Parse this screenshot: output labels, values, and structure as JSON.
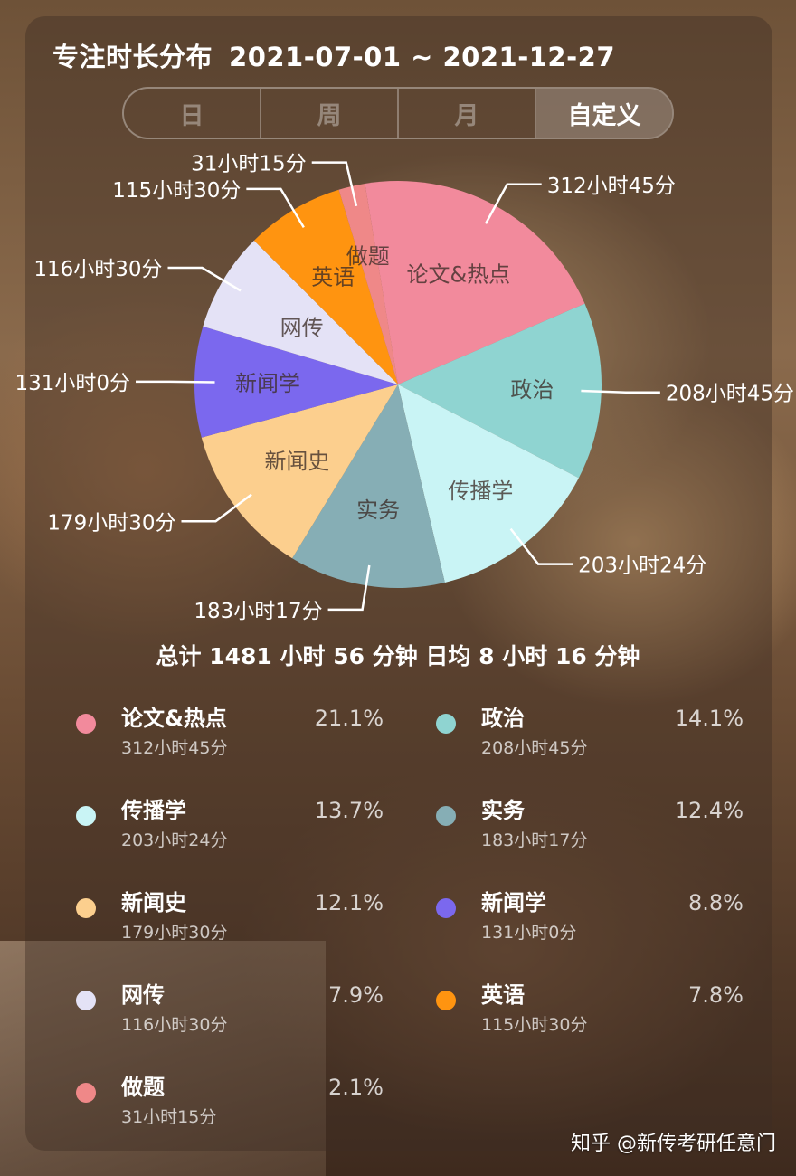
{
  "header": {
    "title": "专注时长分布",
    "date_range": "2021-07-01 ~ 2021-12-27"
  },
  "tabs": [
    {
      "label": "日",
      "active": false
    },
    {
      "label": "周",
      "active": false
    },
    {
      "label": "月",
      "active": false
    },
    {
      "label": "自定义",
      "active": true
    }
  ],
  "summary": "总计 1481 小时 56 分钟 日均 8 小时 16 分钟",
  "watermark": "知乎 @新传考研任意门",
  "chart_data": {
    "type": "pie",
    "title": "",
    "slices": [
      {
        "label": "论文&热点",
        "time": "312小时45分",
        "percent": 21.1,
        "color": "#f28a9c"
      },
      {
        "label": "政治",
        "time": "208小时45分",
        "percent": 14.1,
        "color": "#8fd4d1"
      },
      {
        "label": "传播学",
        "time": "203小时24分",
        "percent": 13.7,
        "color": "#c9f4f5"
      },
      {
        "label": "实务",
        "time": "183小时17分",
        "percent": 12.4,
        "color": "#86aeb5"
      },
      {
        "label": "新闻史",
        "time": "179小时30分",
        "percent": 12.1,
        "color": "#fccf8e"
      },
      {
        "label": "新闻学",
        "time": "131小时0分",
        "percent": 8.8,
        "color": "#7b68ee"
      },
      {
        "label": "网传",
        "time": "116小时30分",
        "percent": 7.9,
        "color": "#e4e2f6"
      },
      {
        "label": "英语",
        "time": "115小时30分",
        "percent": 7.8,
        "color": "#ff9410"
      },
      {
        "label": "做题",
        "time": "31小时15分",
        "percent": 2.1,
        "color": "#ef8888"
      }
    ]
  },
  "legend_display": [
    {
      "name": "论文&热点",
      "time": "312小时45分",
      "pct": "21.1%"
    },
    {
      "name": "政治",
      "time": "208小时45分",
      "pct": "14.1%"
    },
    {
      "name": "传播学",
      "time": "203小时24分",
      "pct": "13.7%"
    },
    {
      "name": "实务",
      "time": "183小时17分",
      "pct": "12.4%"
    },
    {
      "name": "新闻史",
      "time": "179小时30分",
      "pct": "12.1%"
    },
    {
      "name": "新闻学",
      "time": "131小时0分",
      "pct": "8.8%"
    },
    {
      "name": "网传",
      "time": "116小时30分",
      "pct": "7.9%"
    },
    {
      "name": "英语",
      "time": "115小时30分",
      "pct": "7.8%"
    },
    {
      "name": "做题",
      "time": "31小时15分",
      "pct": "2.1%"
    }
  ]
}
